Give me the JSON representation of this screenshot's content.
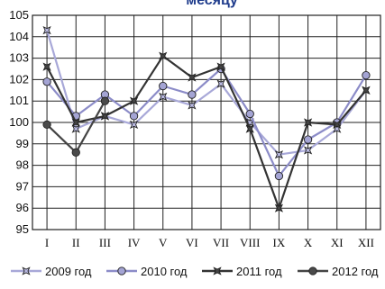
{
  "chart_data": {
    "type": "line",
    "title": "месяцу",
    "categories": [
      "I",
      "II",
      "III",
      "IV",
      "V",
      "VI",
      "VII",
      "VIII",
      "IX",
      "X",
      "XI",
      "XII"
    ],
    "ylim": [
      95,
      105
    ],
    "yticks": [
      95,
      96,
      97,
      98,
      99,
      100,
      101,
      102,
      103,
      104,
      105
    ],
    "grid": true,
    "legend_position": "bottom",
    "series": [
      {
        "name": "2009 год",
        "marker": "star",
        "line_color": "#a8a8d8",
        "marker_fill": "#b8b8e0",
        "values": [
          104.3,
          99.7,
          100.3,
          99.9,
          101.2,
          100.8,
          101.8,
          100.0,
          98.5,
          98.7,
          99.7,
          101.5
        ]
      },
      {
        "name": "2010 год",
        "marker": "circle",
        "line_color": "#8c8cc8",
        "marker_fill": "#a4a4d4",
        "values": [
          101.9,
          100.3,
          101.3,
          100.3,
          101.7,
          101.3,
          102.5,
          100.4,
          97.5,
          99.2,
          100.0,
          102.2
        ]
      },
      {
        "name": "2011 год",
        "marker": "star",
        "line_color": "#333333",
        "marker_fill": "#444444",
        "values": [
          102.6,
          100.0,
          100.3,
          101.0,
          103.1,
          102.1,
          102.6,
          99.7,
          96.0,
          100.0,
          99.9,
          101.5
        ]
      },
      {
        "name": "2012 год",
        "marker": "circle",
        "line_color": "#444444",
        "marker_fill": "#4a4a4a",
        "values": [
          99.9,
          98.6,
          101.0,
          null,
          null,
          null,
          null,
          null,
          null,
          null,
          null,
          null
        ]
      }
    ]
  }
}
